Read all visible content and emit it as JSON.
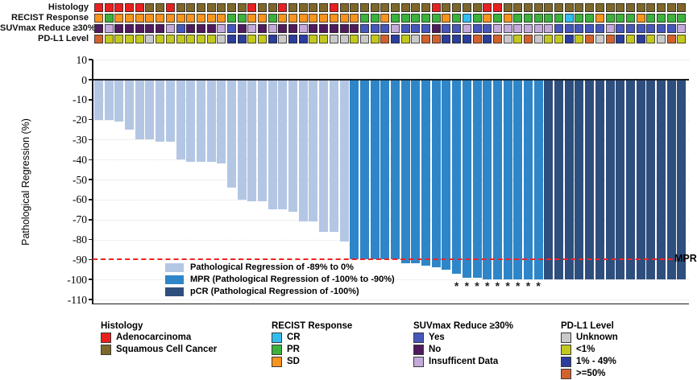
{
  "figure": {
    "y_axis_label": "Pathological Regression (%)",
    "mpr_label": "MPR"
  },
  "annotation_tracks": {
    "color_map": {
      "adenocarcinoma": "#e8201f",
      "squamous": "#7d672b",
      "cr": "#33bdee",
      "pr": "#3cb13c",
      "sd": "#f7941e",
      "yes": "#4657bb",
      "no": "#4f1a5e",
      "insufficient": "#c4aadb",
      "unknown": "#c9c9c9",
      "lt1": "#c2c81d",
      "pct1_49": "#2b3e9b",
      "ge50": "#d2622d"
    },
    "tracks": [
      {
        "id": "histology",
        "label": "Histology",
        "cells": [
          "adenocarcinoma",
          "adenocarcinoma",
          "adenocarcinoma",
          "adenocarcinoma",
          "adenocarcinoma",
          "squamous",
          "squamous",
          "adenocarcinoma",
          "squamous",
          "squamous",
          "squamous",
          "squamous",
          "squamous",
          "squamous",
          "squamous",
          "adenocarcinoma",
          "squamous",
          "squamous",
          "adenocarcinoma",
          "squamous",
          "squamous",
          "squamous",
          "squamous",
          "adenocarcinoma",
          "squamous",
          "squamous",
          "squamous",
          "squamous",
          "squamous",
          "squamous",
          "squamous",
          "squamous",
          "squamous",
          "adenocarcinoma",
          "squamous",
          "squamous",
          "squamous",
          "squamous",
          "adenocarcinoma",
          "adenocarcinoma",
          "squamous",
          "squamous",
          "squamous",
          "squamous",
          "squamous",
          "squamous",
          "squamous",
          "squamous",
          "squamous",
          "squamous",
          "squamous",
          "squamous",
          "squamous",
          "squamous",
          "squamous",
          "squamous",
          "squamous",
          "squamous"
        ]
      },
      {
        "id": "recist",
        "label": "RECIST Response",
        "cells": [
          "sd",
          "pr",
          "sd",
          "sd",
          "sd",
          "sd",
          "sd",
          "sd",
          "sd",
          "sd",
          "sd",
          "sd",
          "sd",
          "pr",
          "pr",
          "sd",
          "sd",
          "pr",
          "sd",
          "sd",
          "sd",
          "sd",
          "sd",
          "sd",
          "sd",
          "sd",
          "pr",
          "pr",
          "sd",
          "pr",
          "pr",
          "pr",
          "pr",
          "pr",
          "sd",
          "pr",
          "cr",
          "pr",
          "sd",
          "pr",
          "sd",
          "pr",
          "pr",
          "pr",
          "pr",
          "pr",
          "cr",
          "pr",
          "pr",
          "sd",
          "pr",
          "pr",
          "pr",
          "sd",
          "pr",
          "pr",
          "pr",
          "pr"
        ]
      },
      {
        "id": "suvmax",
        "label": "SUVmax Reduce ≥30%",
        "cells": [
          "no",
          "insufficient",
          "no",
          "no",
          "no",
          "no",
          "no",
          "insufficient",
          "yes",
          "no",
          "no",
          "no",
          "insufficient",
          "yes",
          "no",
          "insufficient",
          "no",
          "insufficient",
          "no",
          "no",
          "insufficient",
          "no",
          "no",
          "no",
          "no",
          "no",
          "yes",
          "yes",
          "yes",
          "insufficient",
          "yes",
          "yes",
          "yes",
          "no",
          "yes",
          "yes",
          "insufficient",
          "yes",
          "yes",
          "insufficient",
          "insufficient",
          "insufficient",
          "insufficient",
          "insufficient",
          "insufficient",
          "yes",
          "yes",
          "yes",
          "yes",
          "yes",
          "insufficient",
          "yes",
          "yes",
          "yes",
          "yes",
          "yes",
          "yes",
          "insufficient"
        ]
      },
      {
        "id": "pdl1",
        "label": "PD-L1 Level",
        "cells": [
          "ge50",
          "lt1",
          "lt1",
          "lt1",
          "lt1",
          "unknown",
          "lt1",
          "lt1",
          "lt1",
          "lt1",
          "lt1",
          "lt1",
          "unknown",
          "pct1_49",
          "pct1_49",
          "lt1",
          "lt1",
          "pct1_49",
          "unknown",
          "pct1_49",
          "pct1_49",
          "lt1",
          "lt1",
          "unknown",
          "unknown",
          "lt1",
          "unknown",
          "lt1",
          "ge50",
          "pct1_49",
          "lt1",
          "unknown",
          "ge50",
          "ge50",
          "pct1_49",
          "pct1_49",
          "pct1_49",
          "ge50",
          "pct1_49",
          "ge50",
          "unknown",
          "lt1",
          "ge50",
          "unknown",
          "lt1",
          "lt1",
          "pct1_49",
          "lt1",
          "ge50",
          "unknown",
          "ge50",
          "pct1_49",
          "lt1",
          "pct1_49",
          "lt1",
          "unknown",
          "ge50",
          "lt1"
        ]
      }
    ]
  },
  "chart_data": {
    "type": "bar",
    "title": "",
    "xlabel": "",
    "ylabel": "Pathological Regression (%)",
    "ylim": [
      -110,
      10
    ],
    "yticks": [
      10,
      0,
      -10,
      -20,
      -30,
      -40,
      -50,
      -60,
      -70,
      -80,
      -90,
      -100,
      -110
    ],
    "grid": "dotted-horizontal",
    "series": [
      {
        "name": "Pathological Regression per patient",
        "values": [
          -20,
          -20,
          -21,
          -25,
          -30,
          -30,
          -31,
          -31,
          -40,
          -41,
          -41,
          -41,
          -42,
          -54,
          -60,
          -61,
          -61,
          -65,
          -65,
          -66,
          -71,
          -71,
          -76,
          -76,
          -81,
          -90,
          -90,
          -90,
          -90,
          -90,
          -92,
          -92,
          -93,
          -94,
          -95,
          -97,
          -99,
          -99,
          -100,
          -100,
          -100,
          -100,
          -100,
          -100,
          -100,
          -100,
          -100,
          -100,
          -100,
          -100,
          -100,
          -100,
          -100,
          -100,
          -100,
          -100,
          -100,
          -100
        ]
      }
    ],
    "bar_colors": {
      "regression": "#b3c6e4",
      "mpr": "#2e86c8",
      "pcr": "#2e4e7e"
    },
    "group_boundaries": {
      "regression_end_index": 25,
      "mpr_end_index": 44
    },
    "reference_line": {
      "y": -90,
      "style": "dashed",
      "color": "#ee2424",
      "label": "MPR"
    },
    "asterisk_bars": [
      36,
      37,
      38,
      39,
      40,
      41,
      42,
      43,
      44
    ],
    "asterisk_symbol": "*"
  },
  "inplot_legend": [
    {
      "key": "regression",
      "label": "Pathological Regression of -89% to 0%"
    },
    {
      "key": "mpr",
      "label": "MPR (Pathological Regression of -100% to -90%)"
    },
    {
      "key": "pcr",
      "label": "pCR (Pathological Regression of -100%)"
    }
  ],
  "bottom_legends": [
    {
      "id": "histology",
      "title": "Histology",
      "items": [
        {
          "label": "Adenocarcinoma",
          "color_key": "adenocarcinoma"
        },
        {
          "label": "Squamous Cell Cancer",
          "color_key": "squamous"
        }
      ]
    },
    {
      "id": "recist",
      "title": "RECIST Response",
      "items": [
        {
          "label": "CR",
          "color_key": "cr"
        },
        {
          "label": "PR",
          "color_key": "pr"
        },
        {
          "label": "SD",
          "color_key": "sd"
        }
      ]
    },
    {
      "id": "suvmax",
      "title": "SUVmax Reduce ≥30%",
      "items": [
        {
          "label": "Yes",
          "color_key": "yes"
        },
        {
          "label": "No",
          "color_key": "no"
        },
        {
          "label": "Insufficent Data",
          "color_key": "insufficient"
        }
      ]
    },
    {
      "id": "pdl1",
      "title": "PD-L1 Level",
      "items": [
        {
          "label": "Unknown",
          "color_key": "unknown"
        },
        {
          "label": "<1%",
          "color_key": "lt1"
        },
        {
          "label": "1% - 49%",
          "color_key": "pct1_49"
        },
        {
          "label": ">=50%",
          "color_key": "ge50"
        }
      ]
    }
  ]
}
